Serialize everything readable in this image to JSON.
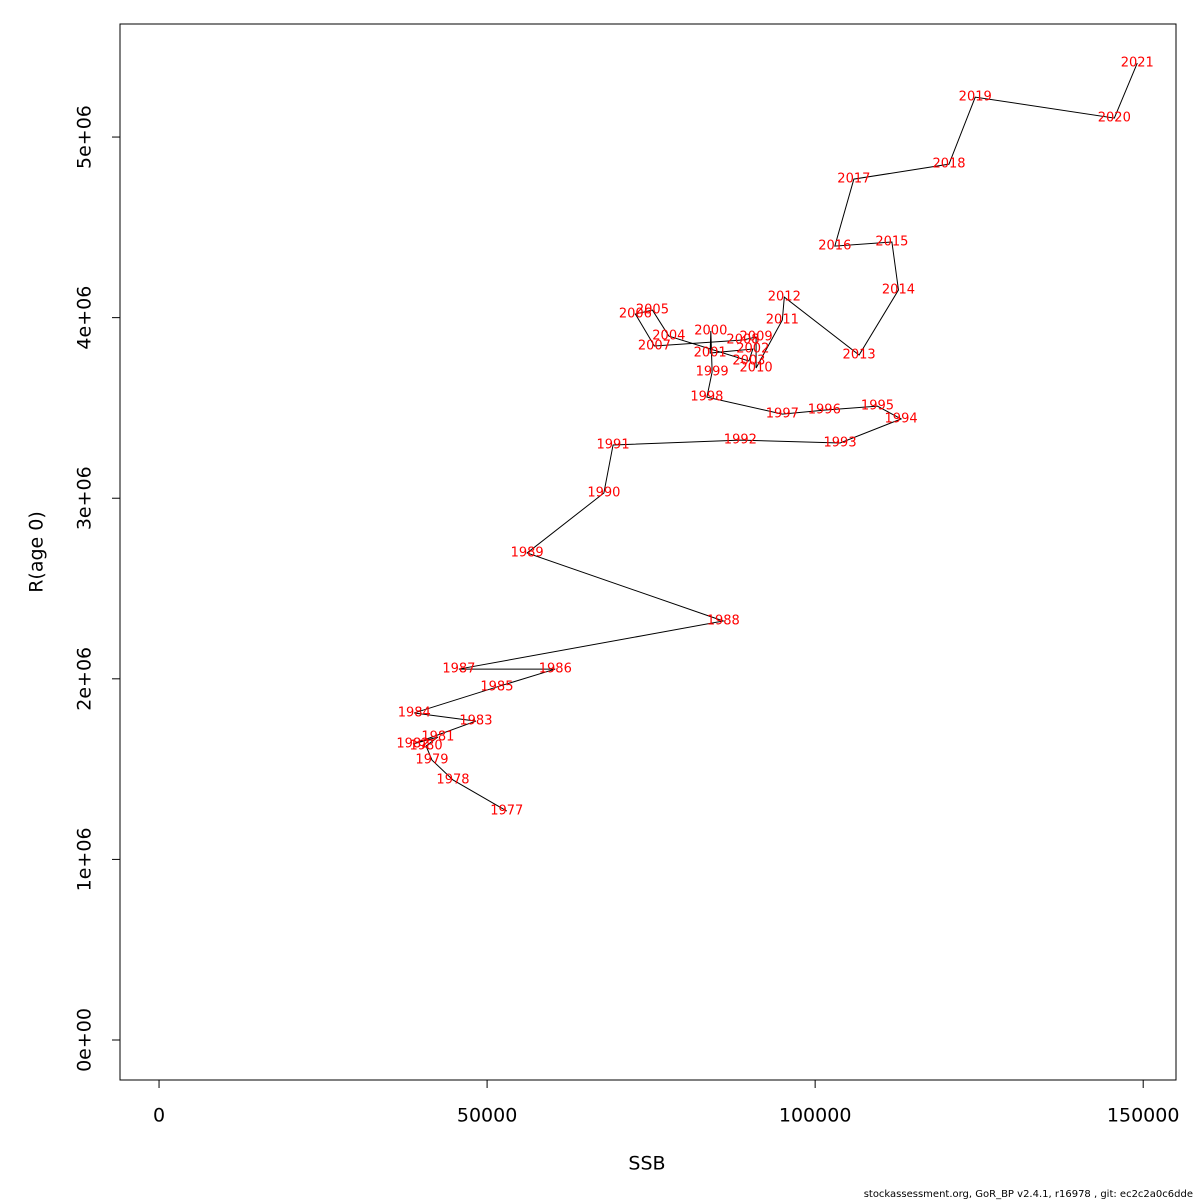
{
  "chart_data": {
    "type": "line",
    "x_label": "SSB",
    "y_label": "R(age 0)",
    "footer": "stockassessment.org, GoR_BP  v2.4.1, r16978 , git: ec2c2a0c6dde",
    "point_labels": [
      "1977",
      "1978",
      "1979",
      "1980",
      "1981",
      "1982",
      "1983",
      "1984",
      "1985",
      "1986",
      "1987",
      "1988",
      "1989",
      "1990",
      "1991",
      "1992",
      "1993",
      "1994",
      "1995",
      "1996",
      "1997",
      "1998",
      "1999",
      "2000",
      "2001",
      "2002",
      "2003",
      "2004",
      "2005",
      "2006",
      "2007",
      "2008",
      "2009",
      "2010",
      "2011",
      "2012",
      "2013",
      "2014",
      "2015",
      "2016",
      "2017",
      "2018",
      "2019",
      "2020",
      "2021"
    ],
    "x": [
      53000,
      44800,
      41600,
      40700,
      42500,
      38700,
      48300,
      38900,
      51500,
      60400,
      45700,
      86000,
      56100,
      67800,
      69200,
      88600,
      103800,
      113100,
      109500,
      101400,
      95000,
      83500,
      84300,
      84100,
      84000,
      90500,
      89900,
      77700,
      75200,
      72600,
      75500,
      89000,
      91000,
      91000,
      95000,
      95300,
      106700,
      112700,
      111700,
      103000,
      105900,
      120400,
      124400,
      145600,
      149100
    ],
    "series": [
      {
        "color": "black",
        "label_color": "red",
        "values": [
          1268000,
          1440000,
          1550000,
          1628000,
          1678000,
          1639000,
          1766000,
          1811000,
          1955000,
          2054000,
          2054000,
          2320000,
          2697000,
          3029000,
          3295000,
          3322000,
          3306000,
          3439000,
          3510000,
          3488000,
          3466000,
          3560000,
          3699000,
          3926000,
          3804000,
          3826000,
          3760000,
          3898000,
          4042000,
          4020000,
          3843000,
          3876000,
          3893000,
          3721000,
          3987000,
          4114000,
          3793000,
          4153000,
          4419000,
          4396000,
          4767000,
          4850000,
          5221000,
          5105000,
          5410000
        ]
      }
    ],
    "xlim": [
      -5950,
      155000
    ],
    "ylim": [
      -221500,
      5626000
    ],
    "xticks": [
      0,
      50000,
      100000,
      150000
    ],
    "yticks": [
      {
        "value": 0,
        "label": "0e+00"
      },
      {
        "value": 1000000,
        "label": "1e+06"
      },
      {
        "value": 2000000,
        "label": "2e+06"
      },
      {
        "value": 3000000,
        "label": "3e+06"
      },
      {
        "value": 4000000,
        "label": "4e+06"
      },
      {
        "value": 5000000,
        "label": "5e+06"
      }
    ]
  }
}
